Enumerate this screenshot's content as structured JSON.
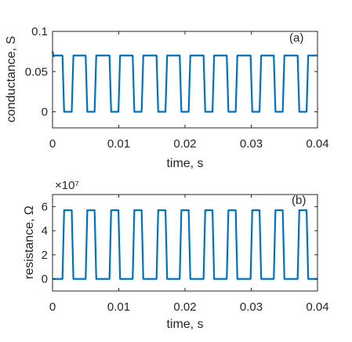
{
  "chart_data": [
    {
      "type": "line",
      "panel_label": "(a)",
      "xlabel": "time, s",
      "ylabel": "conductance, S",
      "xlim": [
        0,
        0.04
      ],
      "ylim": [
        -0.02,
        0.1
      ],
      "xticks": [
        0,
        0.01,
        0.02,
        0.03,
        0.04
      ],
      "xtick_labels": [
        "0",
        "0.01",
        "0.02",
        "0.03",
        "0.04"
      ],
      "yticks": [
        0,
        0.05,
        0.1
      ],
      "ytick_labels": [
        "0",
        "0.05",
        "0.1"
      ],
      "grid": false,
      "line_color": "#0072BD",
      "series": [
        {
          "x": [
            0,
            0.0002,
            0.0003,
            0.0015,
            0.00175,
            0.0029,
            0.00315,
            0.005,
            0.00525,
            0.00635,
            0.0066,
            0.0086,
            0.00885,
            0.00995,
            0.0102,
            0.0121,
            0.01235,
            0.01345,
            0.0137,
            0.0157,
            0.01595,
            0.01705,
            0.0173,
            0.0192,
            0.01945,
            0.02055,
            0.0208,
            0.0228,
            0.02305,
            0.02415,
            0.0244,
            0.0263,
            0.02655,
            0.02765,
            0.0279,
            0.0299,
            0.03015,
            0.03125,
            0.0315,
            0.0334,
            0.03365,
            0.03475,
            0.035,
            0.037,
            0.03725,
            0.03835,
            0.0386,
            0.04
          ],
          "values": [
            0.075,
            0.069,
            0.07,
            0.07,
            0,
            0,
            0.07,
            0.07,
            0,
            0,
            0.07,
            0.07,
            0,
            0,
            0.07,
            0.07,
            0,
            0,
            0.07,
            0.07,
            0,
            0,
            0.07,
            0.07,
            0,
            0,
            0.07,
            0.07,
            0,
            0,
            0.07,
            0.07,
            0,
            0,
            0.07,
            0.07,
            0,
            0,
            0.07,
            0.07,
            0,
            0,
            0.07,
            0.07,
            0,
            0,
            0.07,
            0.07
          ]
        }
      ]
    },
    {
      "type": "line",
      "panel_label": "(b)",
      "xlabel": "time, s",
      "ylabel": "resistance, Ω",
      "exponent_label": "×10⁷",
      "xlim": [
        0,
        0.04
      ],
      "ylim": [
        -1,
        7
      ],
      "xticks": [
        0,
        0.01,
        0.02,
        0.03,
        0.04
      ],
      "xtick_labels": [
        "0",
        "0.01",
        "0.02",
        "0.03",
        "0.04"
      ],
      "yticks": [
        0,
        2,
        4,
        6
      ],
      "ytick_labels": [
        "0",
        "2",
        "4",
        "6"
      ],
      "grid": false,
      "line_color": "#0072BD",
      "series": [
        {
          "x": [
            0,
            0.0015,
            0.00175,
            0.0029,
            0.00315,
            0.005,
            0.00525,
            0.00635,
            0.0066,
            0.0086,
            0.00885,
            0.00995,
            0.0102,
            0.0121,
            0.01235,
            0.01345,
            0.0137,
            0.0157,
            0.01595,
            0.01705,
            0.0173,
            0.0192,
            0.01945,
            0.02055,
            0.0208,
            0.0228,
            0.02305,
            0.02415,
            0.0244,
            0.0263,
            0.02655,
            0.02765,
            0.0279,
            0.0299,
            0.03015,
            0.03125,
            0.0315,
            0.0334,
            0.03365,
            0.03475,
            0.035,
            0.037,
            0.03725,
            0.03835,
            0.0386,
            0.04
          ],
          "values": [
            0,
            0,
            5.7,
            5.7,
            0,
            0,
            5.7,
            5.7,
            0,
            0,
            5.7,
            5.7,
            0,
            0,
            5.7,
            5.7,
            0,
            0,
            5.7,
            5.7,
            0,
            0,
            5.7,
            5.7,
            0,
            0,
            5.7,
            5.7,
            0,
            0,
            5.7,
            5.7,
            0,
            0,
            5.7,
            5.7,
            0,
            0,
            5.7,
            5.7,
            0,
            0,
            5.7,
            5.7,
            0,
            0
          ]
        }
      ]
    }
  ]
}
